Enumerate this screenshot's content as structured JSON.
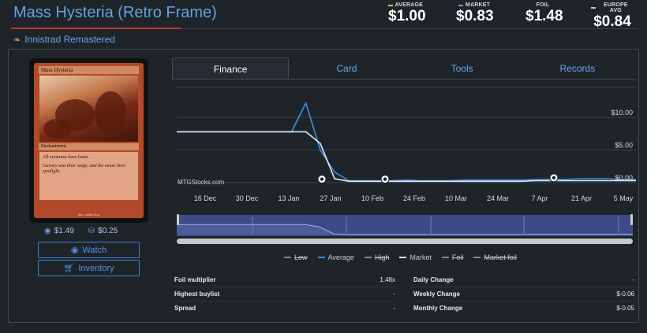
{
  "title": "Mass Hysteria (Retro Frame)",
  "set_name": "Innistrad Remastered",
  "prices": [
    {
      "label": "AVERAGE",
      "value": "$1.00",
      "color": "#f0c040"
    },
    {
      "label": "MARKET",
      "value": "$0.83",
      "color": "#5aa0e8"
    },
    {
      "label": "FOIL",
      "value": "$1.48",
      "color": "#000000"
    },
    {
      "label": "EUROPE AVG",
      "value": "$0.84",
      "color": "#cccccc"
    }
  ],
  "card": {
    "name": "Mass Hysteria",
    "type_line": "Enchantment",
    "rules_text": "All creatures have haste.",
    "flavor_text": "Gavony was their stage, and the moon their spotlight.",
    "footer": "Illus. Justine Cruz"
  },
  "card_prices": {
    "tcg": "$1.49",
    "mkm": "$0.25"
  },
  "buttons": {
    "watch": "Watch",
    "inventory": "Inventory"
  },
  "tabs": [
    {
      "label": "Finance",
      "active": true
    },
    {
      "label": "Card",
      "active": false
    },
    {
      "label": "Tools",
      "active": false
    },
    {
      "label": "Records",
      "active": false
    }
  ],
  "watermark": "MTGStocks.com",
  "chart_data": {
    "type": "line",
    "x_ticks": [
      "16 Dec",
      "30 Dec",
      "13 Jan",
      "27 Jan",
      "10 Feb",
      "24 Feb",
      "10 Mar",
      "24 Mar",
      "7 Apr",
      "21 Apr",
      "5 May"
    ],
    "y_ticks": [
      "$10.00",
      "$5.00",
      "$0.00"
    ],
    "ylim": [
      0,
      14
    ],
    "grid": true,
    "series": [
      {
        "name": "Average",
        "color": "#3b8fe0",
        "values": [
          7.8,
          7.8,
          7.8,
          7.8,
          7.8,
          7.8,
          7.8,
          7.8,
          7.8,
          12.2,
          5.0,
          1.6,
          0.3,
          0.3,
          0.3,
          0.3,
          0.4,
          0.3,
          0.3,
          0.3,
          0.4,
          0.4,
          0.4,
          0.4,
          0.4,
          0.5,
          0.5,
          0.5,
          0.6,
          0.6,
          0.6,
          0.5,
          0.5
        ]
      },
      {
        "name": "Market",
        "color": "#e0e8f5",
        "values": [
          7.8,
          7.8,
          7.8,
          7.8,
          7.8,
          7.8,
          7.8,
          7.8,
          7.8,
          7.8,
          6.0,
          0.6,
          0.2,
          0.2,
          0.2,
          0.2,
          0.2,
          0.2,
          0.2,
          0.2,
          0.2,
          0.2,
          0.2,
          0.2,
          0.2,
          0.3,
          0.3,
          0.3,
          0.3,
          0.3,
          0.3,
          0.3,
          0.3
        ]
      }
    ]
  },
  "legend": [
    {
      "label": "Low",
      "color": "#888888",
      "disabled": true
    },
    {
      "label": "Average",
      "color": "#3b8fe0",
      "disabled": false
    },
    {
      "label": "High",
      "color": "#888888",
      "disabled": true
    },
    {
      "label": "Market",
      "color": "#e0e8f5",
      "disabled": false
    },
    {
      "label": "Foil",
      "color": "#888888",
      "disabled": true
    },
    {
      "label": "Market foil",
      "color": "#888888",
      "disabled": true
    }
  ],
  "stats_left": [
    {
      "label": "Foil multiplier",
      "value": "1.48x"
    },
    {
      "label": "Highest buylist",
      "value": "-"
    },
    {
      "label": "Spread",
      "value": "-"
    }
  ],
  "stats_right": [
    {
      "label": "Daily Change",
      "value": "-"
    },
    {
      "label": "Weekly Change",
      "value": "$-0.06"
    },
    {
      "label": "Monthly Change",
      "value": "$-0.05"
    }
  ]
}
